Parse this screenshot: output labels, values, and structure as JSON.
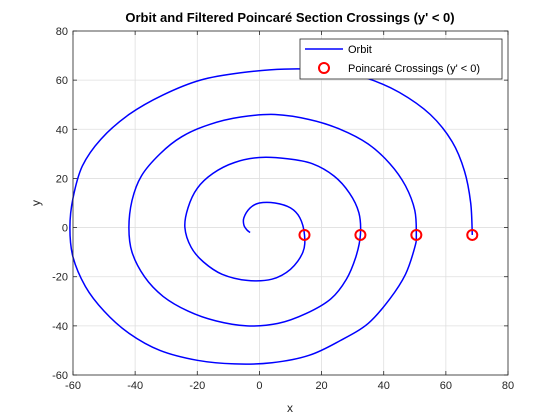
{
  "chart_data": {
    "type": "line",
    "title": "Orbit and Filtered Poincaré Section Crossings (y' < 0)",
    "xlabel": "x",
    "ylabel": "y",
    "xlim": [
      -60,
      80
    ],
    "ylim": [
      -60,
      80
    ],
    "xticks": [
      -60,
      -40,
      -20,
      0,
      20,
      40,
      60,
      80
    ],
    "yticks": [
      -60,
      -40,
      -20,
      0,
      20,
      40,
      60,
      80
    ],
    "xtick_labels": [
      "-60",
      "-40",
      "-20",
      "0",
      "20",
      "40",
      "60",
      "80"
    ],
    "ytick_labels": [
      "-60",
      "-40",
      "-20",
      "0",
      "20",
      "40",
      "60",
      "80"
    ],
    "grid": true,
    "legend_position": "top-right",
    "series": [
      {
        "name": "Orbit",
        "type": "line",
        "color": "#0000ff",
        "description_center": [
          -3,
          2
        ],
        "points": [
          [
            68.5,
            -3
          ],
          [
            68,
            10
          ],
          [
            66,
            23
          ],
          [
            62,
            35
          ],
          [
            55,
            46
          ],
          [
            45,
            55
          ],
          [
            34,
            61
          ],
          [
            22,
            64
          ],
          [
            8,
            64.5
          ],
          [
            -6,
            63
          ],
          [
            -19,
            60
          ],
          [
            -31,
            54
          ],
          [
            -42,
            46
          ],
          [
            -51,
            36
          ],
          [
            -57,
            25
          ],
          [
            -60,
            12
          ],
          [
            -61,
            0
          ],
          [
            -60,
            -12
          ],
          [
            -56,
            -24
          ],
          [
            -50,
            -34
          ],
          [
            -42,
            -43
          ],
          [
            -32,
            -50
          ],
          [
            -20,
            -54
          ],
          [
            -8,
            -55.5
          ],
          [
            4,
            -55
          ],
          [
            16,
            -52
          ],
          [
            26,
            -46
          ],
          [
            35,
            -39
          ],
          [
            42,
            -29
          ],
          [
            47,
            -19
          ],
          [
            50,
            -8
          ],
          [
            50.5,
            -3
          ],
          [
            50,
            7
          ],
          [
            47,
            17
          ],
          [
            42,
            26
          ],
          [
            35,
            34
          ],
          [
            26,
            40
          ],
          [
            16,
            44
          ],
          [
            5,
            46
          ],
          [
            -6,
            45
          ],
          [
            -16,
            42
          ],
          [
            -25,
            37
          ],
          [
            -32,
            30
          ],
          [
            -38,
            21
          ],
          [
            -41,
            11
          ],
          [
            -42,
            0
          ],
          [
            -41,
            -10
          ],
          [
            -37,
            -20
          ],
          [
            -31,
            -28
          ],
          [
            -23,
            -34
          ],
          [
            -14,
            -38
          ],
          [
            -4,
            -40
          ],
          [
            6,
            -39
          ],
          [
            15,
            -35
          ],
          [
            23,
            -29
          ],
          [
            28,
            -21
          ],
          [
            31,
            -12
          ],
          [
            32.5,
            -3
          ],
          [
            32,
            6
          ],
          [
            29,
            14
          ],
          [
            24,
            21
          ],
          [
            17,
            26
          ],
          [
            9,
            28
          ],
          [
            0,
            28.5
          ],
          [
            -8,
            26.5
          ],
          [
            -15,
            22
          ],
          [
            -20,
            16
          ],
          [
            -23,
            8
          ],
          [
            -24,
            0
          ],
          [
            -22,
            -8
          ],
          [
            -18,
            -14
          ],
          [
            -12,
            -19
          ],
          [
            -4,
            -21.5
          ],
          [
            4,
            -21
          ],
          [
            10,
            -17
          ],
          [
            14,
            -10
          ],
          [
            14.5,
            -3
          ],
          [
            13,
            4
          ],
          [
            10,
            8
          ],
          [
            5,
            10
          ],
          [
            0,
            10
          ],
          [
            -3,
            8
          ],
          [
            -5,
            4
          ],
          [
            -5,
            1
          ],
          [
            -4,
            -1
          ],
          [
            -3,
            -2
          ]
        ]
      },
      {
        "name": "Poincaré Crossings (y' < 0)",
        "type": "scatter",
        "marker": "circle",
        "color": "#ff0000",
        "x": [
          14.5,
          32.5,
          50.5,
          68.5
        ],
        "y": [
          -3,
          -3,
          -3,
          -3
        ]
      }
    ]
  },
  "legend": {
    "items": [
      {
        "label": "Orbit"
      },
      {
        "label": "Poincaré Crossings (y' < 0)"
      }
    ]
  }
}
